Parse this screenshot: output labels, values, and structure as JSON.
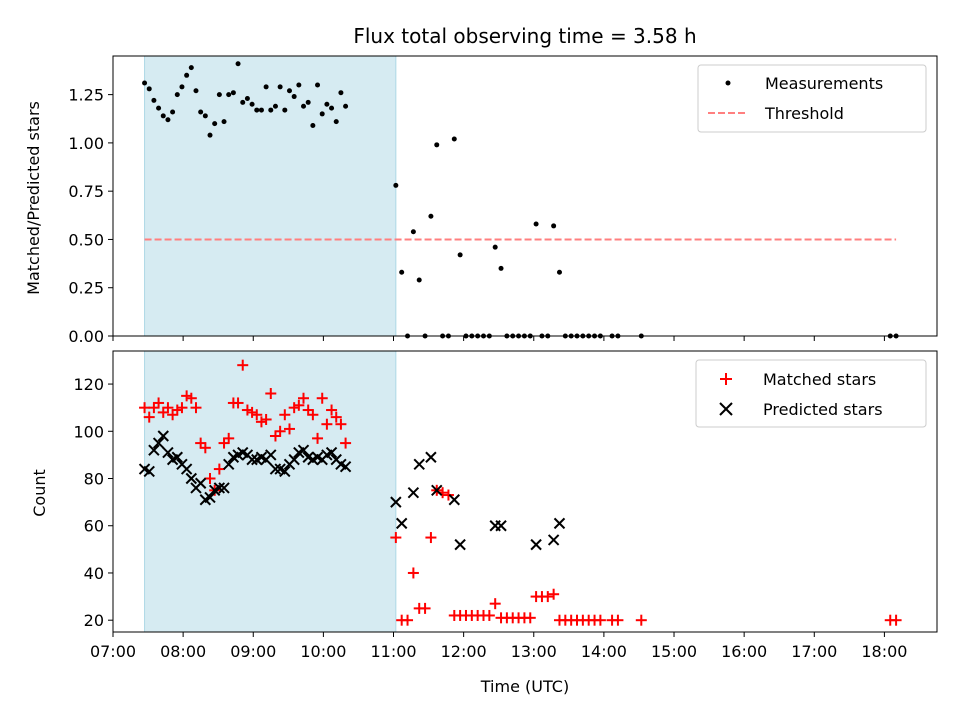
{
  "chart_data": [
    {
      "type": "scatter",
      "title": "Flux total observing time = 3.58 h",
      "xlabel": "",
      "ylabel": "Matched/Predicted stars",
      "xlim": [
        "07:00",
        "18:45"
      ],
      "ylim": [
        0,
        1.45
      ],
      "x_tick_labels": [
        "07:00",
        "08:00",
        "09:00",
        "10:00",
        "11:00",
        "12:00",
        "13:00",
        "14:00",
        "15:00",
        "16:00",
        "17:00",
        "18:00"
      ],
      "y_tick_labels": [
        "0.00",
        "0.25",
        "0.50",
        "0.75",
        "1.00",
        "1.25"
      ],
      "y_ticks": [
        0,
        0.25,
        0.5,
        0.75,
        1.0,
        1.25
      ],
      "legend": "top-right",
      "shaded_span": {
        "x0": "07:27",
        "x1": "11:02",
        "color": "#add8e6"
      },
      "series": [
        {
          "name": "Measurements",
          "marker": "dot",
          "color": "#000000",
          "points": [
            [
              "07:27",
              1.31
            ],
            [
              "07:31",
              1.28
            ],
            [
              "07:35",
              1.22
            ],
            [
              "07:39",
              1.18
            ],
            [
              "07:43",
              1.14
            ],
            [
              "07:47",
              1.12
            ],
            [
              "07:51",
              1.16
            ],
            [
              "07:55",
              1.25
            ],
            [
              "07:59",
              1.29
            ],
            [
              "08:03",
              1.35
            ],
            [
              "08:07",
              1.39
            ],
            [
              "08:11",
              1.27
            ],
            [
              "08:15",
              1.16
            ],
            [
              "08:19",
              1.14
            ],
            [
              "08:23",
              1.04
            ],
            [
              "08:27",
              1.1
            ],
            [
              "08:31",
              1.25
            ],
            [
              "08:35",
              1.11
            ],
            [
              "08:39",
              1.25
            ],
            [
              "08:43",
              1.26
            ],
            [
              "08:47",
              1.41
            ],
            [
              "08:51",
              1.21
            ],
            [
              "08:55",
              1.23
            ],
            [
              "08:59",
              1.2
            ],
            [
              "09:03",
              1.17
            ],
            [
              "09:07",
              1.17
            ],
            [
              "09:11",
              1.29
            ],
            [
              "09:15",
              1.17
            ],
            [
              "09:19",
              1.19
            ],
            [
              "09:23",
              1.29
            ],
            [
              "09:27",
              1.17
            ],
            [
              "09:31",
              1.27
            ],
            [
              "09:35",
              1.24
            ],
            [
              "09:39",
              1.3
            ],
            [
              "09:43",
              1.19
            ],
            [
              "09:47",
              1.21
            ],
            [
              "09:51",
              1.09
            ],
            [
              "09:55",
              1.3
            ],
            [
              "09:59",
              1.15
            ],
            [
              "10:03",
              1.2
            ],
            [
              "10:07",
              1.18
            ],
            [
              "10:11",
              1.11
            ],
            [
              "10:15",
              1.26
            ],
            [
              "10:19",
              1.19
            ],
            [
              "11:02",
              0.78
            ],
            [
              "11:07",
              0.33
            ],
            [
              "11:12",
              0.0
            ],
            [
              "11:17",
              0.54
            ],
            [
              "11:22",
              0.29
            ],
            [
              "11:27",
              0.0
            ],
            [
              "11:32",
              0.62
            ],
            [
              "11:37",
              0.99
            ],
            [
              "11:42",
              0.0
            ],
            [
              "11:47",
              0.0
            ],
            [
              "11:52",
              1.02
            ],
            [
              "11:57",
              0.42
            ],
            [
              "12:02",
              0.0
            ],
            [
              "12:07",
              0.0
            ],
            [
              "12:12",
              0.0
            ],
            [
              "12:17",
              0.0
            ],
            [
              "12:22",
              0.0
            ],
            [
              "12:27",
              0.46
            ],
            [
              "12:32",
              0.35
            ],
            [
              "12:37",
              0.0
            ],
            [
              "12:42",
              0.0
            ],
            [
              "12:47",
              0.0
            ],
            [
              "12:52",
              0.0
            ],
            [
              "12:57",
              0.0
            ],
            [
              "13:02",
              0.58
            ],
            [
              "13:07",
              0.0
            ],
            [
              "13:12",
              0.0
            ],
            [
              "13:17",
              0.57
            ],
            [
              "13:22",
              0.33
            ],
            [
              "13:27",
              0.0
            ],
            [
              "13:32",
              0.0
            ],
            [
              "13:37",
              0.0
            ],
            [
              "13:42",
              0.0
            ],
            [
              "13:47",
              0.0
            ],
            [
              "13:52",
              0.0
            ],
            [
              "13:57",
              0.0
            ],
            [
              "14:07",
              0.0
            ],
            [
              "14:12",
              0.0
            ],
            [
              "14:32",
              0.0
            ],
            [
              "18:05",
              0.0
            ],
            [
              "18:10",
              0.0
            ]
          ]
        },
        {
          "name": "Threshold",
          "marker": "dashed-line",
          "color": "#ff7f7f",
          "points": [
            [
              "07:27",
              0.5
            ],
            [
              "18:10",
              0.5
            ]
          ]
        }
      ]
    },
    {
      "type": "scatter",
      "title": "",
      "xlabel": "Time (UTC)",
      "ylabel": "Count",
      "xlim": [
        "07:00",
        "18:45"
      ],
      "ylim": [
        15,
        134
      ],
      "x_tick_labels": [
        "07:00",
        "08:00",
        "09:00",
        "10:00",
        "11:00",
        "12:00",
        "13:00",
        "14:00",
        "15:00",
        "16:00",
        "17:00",
        "18:00"
      ],
      "y_tick_labels": [
        "20",
        "40",
        "60",
        "80",
        "100",
        "120"
      ],
      "y_ticks": [
        20,
        40,
        60,
        80,
        100,
        120
      ],
      "legend": "top-right",
      "shaded_span": {
        "x0": "07:27",
        "x1": "11:02",
        "color": "#add8e6"
      },
      "series": [
        {
          "name": "Matched stars",
          "marker": "plus",
          "color": "#ff0000",
          "points": [
            [
              "07:27",
              110
            ],
            [
              "07:31",
              106
            ],
            [
              "07:35",
              110
            ],
            [
              "07:39",
              112
            ],
            [
              "07:43",
              108
            ],
            [
              "07:47",
              110
            ],
            [
              "07:51",
              107
            ],
            [
              "07:55",
              109
            ],
            [
              "07:59",
              110
            ],
            [
              "08:03",
              115
            ],
            [
              "08:07",
              114
            ],
            [
              "08:11",
              110
            ],
            [
              "08:15",
              95
            ],
            [
              "08:19",
              93
            ],
            [
              "08:23",
              80
            ],
            [
              "08:27",
              75
            ],
            [
              "08:31",
              84
            ],
            [
              "08:35",
              95
            ],
            [
              "08:39",
              97
            ],
            [
              "08:43",
              112
            ],
            [
              "08:47",
              112
            ],
            [
              "08:51",
              128
            ],
            [
              "08:55",
              109
            ],
            [
              "08:59",
              108
            ],
            [
              "09:03",
              107
            ],
            [
              "09:07",
              104
            ],
            [
              "09:11",
              105
            ],
            [
              "09:15",
              116
            ],
            [
              "09:19",
              98
            ],
            [
              "09:23",
              100
            ],
            [
              "09:27",
              107
            ],
            [
              "09:31",
              101
            ],
            [
              "09:35",
              110
            ],
            [
              "09:39",
              111
            ],
            [
              "09:43",
              114
            ],
            [
              "09:47",
              109
            ],
            [
              "09:51",
              107
            ],
            [
              "09:55",
              97
            ],
            [
              "09:59",
              114
            ],
            [
              "10:03",
              103
            ],
            [
              "10:07",
              109
            ],
            [
              "10:11",
              106
            ],
            [
              "10:15",
              103
            ],
            [
              "10:19",
              95
            ],
            [
              "11:02",
              55
            ],
            [
              "11:07",
              20
            ],
            [
              "11:12",
              20
            ],
            [
              "11:17",
              40
            ],
            [
              "11:22",
              25
            ],
            [
              "11:27",
              25
            ],
            [
              "11:32",
              55
            ],
            [
              "11:37",
              75
            ],
            [
              "11:42",
              74
            ],
            [
              "11:47",
              73
            ],
            [
              "11:52",
              22
            ],
            [
              "11:57",
              22
            ],
            [
              "12:02",
              22
            ],
            [
              "12:07",
              22
            ],
            [
              "12:12",
              22
            ],
            [
              "12:17",
              22
            ],
            [
              "12:22",
              22
            ],
            [
              "12:27",
              27
            ],
            [
              "12:32",
              21
            ],
            [
              "12:37",
              21
            ],
            [
              "12:42",
              21
            ],
            [
              "12:47",
              21
            ],
            [
              "12:52",
              21
            ],
            [
              "12:57",
              21
            ],
            [
              "13:02",
              30
            ],
            [
              "13:07",
              30
            ],
            [
              "13:12",
              30
            ],
            [
              "13:17",
              31
            ],
            [
              "13:22",
              20
            ],
            [
              "13:27",
              20
            ],
            [
              "13:32",
              20
            ],
            [
              "13:37",
              20
            ],
            [
              "13:42",
              20
            ],
            [
              "13:47",
              20
            ],
            [
              "13:52",
              20
            ],
            [
              "13:57",
              20
            ],
            [
              "14:07",
              20
            ],
            [
              "14:12",
              20
            ],
            [
              "14:32",
              20
            ],
            [
              "18:05",
              20
            ],
            [
              "18:10",
              20
            ]
          ]
        },
        {
          "name": "Predicted stars",
          "marker": "x",
          "color": "#000000",
          "points": [
            [
              "07:27",
              84
            ],
            [
              "07:31",
              83
            ],
            [
              "07:35",
              92
            ],
            [
              "07:39",
              95
            ],
            [
              "07:43",
              98
            ],
            [
              "07:47",
              91
            ],
            [
              "07:51",
              88
            ],
            [
              "07:55",
              89
            ],
            [
              "07:59",
              86
            ],
            [
              "08:03",
              84
            ],
            [
              "08:07",
              80
            ],
            [
              "08:11",
              76
            ],
            [
              "08:15",
              78
            ],
            [
              "08:19",
              71
            ],
            [
              "08:23",
              72
            ],
            [
              "08:27",
              75
            ],
            [
              "08:31",
              76
            ],
            [
              "08:35",
              76
            ],
            [
              "08:39",
              86
            ],
            [
              "08:43",
              89
            ],
            [
              "08:47",
              90
            ],
            [
              "08:51",
              91
            ],
            [
              "08:55",
              90
            ],
            [
              "08:59",
              88
            ],
            [
              "09:03",
              88
            ],
            [
              "09:07",
              89
            ],
            [
              "09:11",
              88
            ],
            [
              "09:15",
              90
            ],
            [
              "09:19",
              84
            ],
            [
              "09:23",
              84
            ],
            [
              "09:27",
              83
            ],
            [
              "09:31",
              86
            ],
            [
              "09:35",
              88
            ],
            [
              "09:39",
              91
            ],
            [
              "09:43",
              92
            ],
            [
              "09:47",
              89
            ],
            [
              "09:51",
              88
            ],
            [
              "09:55",
              89
            ],
            [
              "09:59",
              88
            ],
            [
              "10:03",
              90
            ],
            [
              "10:07",
              91
            ],
            [
              "10:11",
              88
            ],
            [
              "10:15",
              86
            ],
            [
              "10:19",
              85
            ],
            [
              "11:02",
              70
            ],
            [
              "11:07",
              61
            ],
            [
              "11:17",
              74
            ],
            [
              "11:22",
              86
            ],
            [
              "11:32",
              89
            ],
            [
              "11:37",
              75
            ],
            [
              "11:52",
              71
            ],
            [
              "11:57",
              52
            ],
            [
              "12:27",
              60
            ],
            [
              "12:32",
              60
            ],
            [
              "13:02",
              52
            ],
            [
              "13:17",
              54
            ],
            [
              "13:22",
              61
            ]
          ]
        }
      ]
    }
  ]
}
